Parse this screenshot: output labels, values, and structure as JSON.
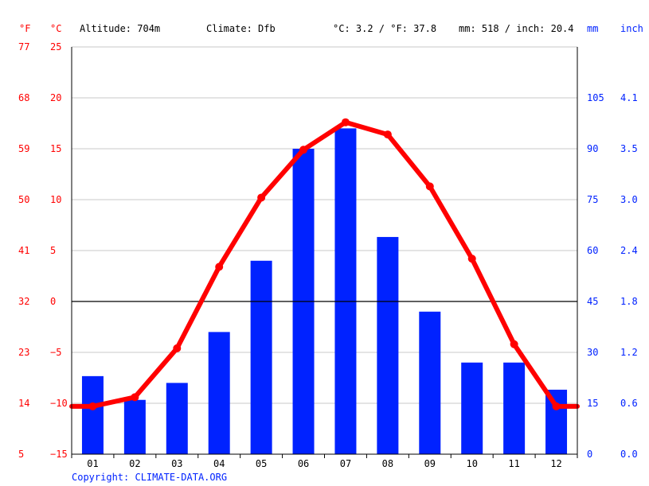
{
  "header": {
    "unit_f": "°F",
    "unit_c": "°C",
    "altitude": "Altitude: 704m",
    "climate": "Climate: Dfb",
    "temp_avg": "°C: 3.2 / °F: 37.8",
    "precip_total": "mm: 518 / inch: 20.4",
    "unit_mm": "mm",
    "unit_inch": "inch"
  },
  "copyright": "Copyright: CLIMATE-DATA.ORG",
  "colors": {
    "temperature": "#ff0000",
    "precipitation": "#0022ff",
    "grid": "#c8c8c8",
    "zero_line": "#000000"
  },
  "chart_data": {
    "type": "bar+line",
    "categories": [
      "01",
      "02",
      "03",
      "04",
      "05",
      "06",
      "07",
      "08",
      "09",
      "10",
      "11",
      "12"
    ],
    "series": [
      {
        "name": "precipitation_mm",
        "type": "bar",
        "values": [
          23,
          16,
          21,
          36,
          57,
          90,
          96,
          64,
          42,
          27,
          27,
          19
        ]
      },
      {
        "name": "temperature_c",
        "type": "line",
        "values": [
          -10.3,
          -9.4,
          -4.6,
          3.4,
          10.2,
          14.9,
          17.6,
          16.4,
          11.3,
          4.2,
          -4.2,
          -10.3
        ]
      }
    ],
    "y_left_c": {
      "ticks": [
        "25",
        "20",
        "15",
        "10",
        "5",
        "0",
        "−5",
        "−10",
        "−15"
      ],
      "range": [
        -15,
        25
      ]
    },
    "y_left_f": {
      "ticks": [
        "77",
        "68",
        "59",
        "50",
        "41",
        "32",
        "23",
        "14",
        "5"
      ]
    },
    "y_right_mm": {
      "ticks": [
        "105",
        "90",
        "75",
        "60",
        "45",
        "30",
        "15",
        "0"
      ],
      "range": [
        0,
        120
      ]
    },
    "y_right_inch": {
      "ticks": [
        "4.1",
        "3.5",
        "3.0",
        "2.4",
        "1.8",
        "1.2",
        "0.6",
        "0.0"
      ]
    },
    "grid": true
  }
}
